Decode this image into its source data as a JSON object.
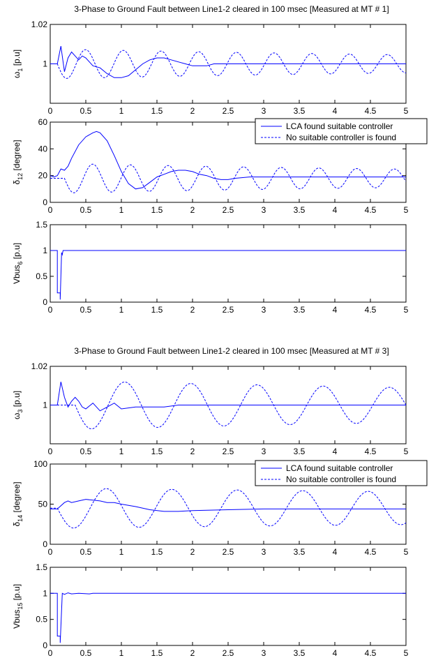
{
  "figure": {
    "legend_solid": "LCA found suitable controller",
    "legend_dashed": "No suitable controller is found"
  },
  "chart_data": [
    {
      "type": "line",
      "title": "3-Phase to Ground Fault between Line1-2 cleared in 100 msec [Measured at MT # 1]",
      "ylabel": "ω1 [p.u]",
      "xlim": [
        0,
        5
      ],
      "ylim": [
        0.98,
        1.02
      ],
      "yticks": [
        1,
        1.02
      ],
      "xticks": [
        0,
        0.5,
        1,
        1.5,
        2,
        2.5,
        3,
        3.5,
        4,
        4.5,
        5
      ],
      "legend": null,
      "series": [
        {
          "name": "LCA found suitable controller",
          "style": "solid",
          "x": [
            0,
            0.1,
            0.15,
            0.2,
            0.25,
            0.3,
            0.35,
            0.4,
            0.45,
            0.5,
            0.55,
            0.6,
            0.7,
            0.8,
            0.9,
            1.0,
            1.1,
            1.2,
            1.3,
            1.4,
            1.5,
            1.6,
            1.7,
            1.8,
            1.9,
            2.0,
            2.1,
            2.2,
            2.3,
            2.4,
            2.5,
            2.6,
            2.7,
            2.8,
            2.9,
            3.0,
            3.5,
            4.0,
            4.5,
            5.0
          ],
          "y": [
            1.0,
            1.0,
            1.009,
            0.996,
            1.003,
            1.006,
            1.004,
            1.002,
            1.004,
            1.003,
            1.001,
            0.999,
            0.998,
            0.995,
            0.993,
            0.993,
            0.994,
            0.997,
            1.0,
            1.002,
            1.003,
            1.003,
            1.002,
            1.001,
            1.0,
            0.999,
            0.999,
            0.999,
            1.0,
            1.0,
            1.0,
            1.0,
            1.0,
            1.0,
            1.0,
            1.0,
            1.0,
            1.0,
            1.0,
            1.0
          ]
        },
        {
          "name": "No suitable controller is found",
          "style": "dashed",
          "amplitude": 0.0075,
          "decay": 0.1,
          "period": 0.53,
          "start": 0.1
        }
      ]
    },
    {
      "type": "line",
      "ylabel": "δ12 [degree]",
      "xlim": [
        0,
        5
      ],
      "ylim": [
        0,
        60
      ],
      "yticks": [
        0,
        20,
        40,
        60
      ],
      "xticks": [
        0,
        0.5,
        1,
        1.5,
        2,
        2.5,
        3,
        3.5,
        4,
        4.5,
        5
      ],
      "legend": "top-right",
      "series": [
        {
          "name": "LCA found suitable controller",
          "style": "solid",
          "x": [
            0,
            0.05,
            0.1,
            0.15,
            0.2,
            0.25,
            0.3,
            0.4,
            0.5,
            0.6,
            0.65,
            0.7,
            0.8,
            0.9,
            1.0,
            1.1,
            1.2,
            1.3,
            1.4,
            1.5,
            1.6,
            1.7,
            1.8,
            1.9,
            2.0,
            2.1,
            2.2,
            2.3,
            2.4,
            2.5,
            2.6,
            2.8,
            3.0,
            3.5,
            4.0,
            4.5,
            5.0
          ],
          "y": [
            20,
            19,
            20,
            25,
            24,
            27,
            33,
            43,
            49,
            52,
            53,
            52,
            46,
            35,
            23,
            14,
            10,
            11,
            15,
            19,
            21,
            23,
            24,
            24,
            23,
            21,
            20,
            18,
            17,
            17,
            18,
            19,
            19,
            19,
            19,
            19,
            19
          ]
        },
        {
          "name": "No suitable controller is found",
          "style": "dashed",
          "base": 18,
          "amplitude": 11,
          "decay": 0.1,
          "period": 0.53,
          "start": 0.2
        }
      ]
    },
    {
      "type": "line",
      "ylabel": "Vbus6 [p.u]",
      "xlim": [
        0,
        5
      ],
      "ylim": [
        0,
        1.5
      ],
      "yticks": [
        0,
        0.5,
        1,
        1.5
      ],
      "xticks": [
        0,
        0.5,
        1,
        1.5,
        2,
        2.5,
        3,
        3.5,
        4,
        4.5,
        5
      ],
      "legend": null,
      "series": [
        {
          "name": "LCA found suitable controller",
          "style": "solid",
          "x": [
            0,
            0.1,
            0.1,
            0.14,
            0.14,
            0.16,
            0.17,
            0.18,
            0.2,
            5.0
          ],
          "y": [
            1,
            1,
            0.18,
            0.18,
            0.05,
            0.96,
            0.92,
            1.0,
            1.0,
            1.0
          ]
        }
      ]
    },
    {
      "type": "line",
      "title": "3-Phase to Ground Fault between Line1-2 cleared in 100 msec [Measured at MT # 3]",
      "ylabel": "ω3 [p.u]",
      "xlim": [
        0,
        5
      ],
      "ylim": [
        0.98,
        1.02
      ],
      "yticks": [
        1,
        1.02
      ],
      "xticks": [
        0,
        0.5,
        1,
        1.5,
        2,
        2.5,
        3,
        3.5,
        4,
        4.5,
        5
      ],
      "legend": null,
      "series": [
        {
          "name": "LCA found suitable controller",
          "style": "solid",
          "x": [
            0,
            0.1,
            0.15,
            0.2,
            0.25,
            0.3,
            0.35,
            0.4,
            0.45,
            0.5,
            0.6,
            0.7,
            0.8,
            0.9,
            1.0,
            1.2,
            1.4,
            1.6,
            1.8,
            2.0,
            2.5,
            3.0,
            3.5,
            4.0,
            4.5,
            5.0
          ],
          "y": [
            1.0,
            1.0,
            1.012,
            1.004,
            0.999,
            1.002,
            1.004,
            1.002,
            0.999,
            0.998,
            1.001,
            0.997,
            0.999,
            1.001,
            0.998,
            0.999,
            0.999,
            0.999,
            1.0,
            1.0,
            1.0,
            1.0,
            1.0,
            1.0,
            1.0,
            1.0
          ]
        },
        {
          "name": "No suitable controller is found",
          "style": "dashed",
          "amplitude": 0.0125,
          "decay": 0.07,
          "period": 0.93,
          "start": 0.35
        }
      ]
    },
    {
      "type": "line",
      "ylabel": "δ14 [degree]",
      "xlim": [
        0,
        5
      ],
      "ylim": [
        0,
        100
      ],
      "yticks": [
        0,
        50,
        100
      ],
      "xticks": [
        0,
        0.5,
        1,
        1.5,
        2,
        2.5,
        3,
        3.5,
        4,
        4.5,
        5
      ],
      "legend": "top-right",
      "series": [
        {
          "name": "LCA found suitable controller",
          "style": "solid",
          "x": [
            0,
            0.1,
            0.2,
            0.25,
            0.3,
            0.4,
            0.5,
            0.6,
            0.7,
            0.8,
            0.9,
            1.0,
            1.2,
            1.4,
            1.6,
            1.8,
            2.0,
            2.5,
            3.0,
            3.5,
            4.0,
            4.5,
            5.0
          ],
          "y": [
            44,
            44,
            52,
            54,
            52,
            54,
            56,
            55,
            54,
            52,
            52,
            50,
            47,
            43,
            41,
            41,
            42,
            43,
            44,
            44,
            44,
            44,
            44
          ]
        },
        {
          "name": "No suitable controller is found",
          "style": "dashed",
          "base": 45,
          "amplitude": 25,
          "decay": 0.04,
          "period": 0.92,
          "start": 0.1
        }
      ]
    },
    {
      "type": "line",
      "ylabel": "Vbus15 [p.u]",
      "xlim": [
        0,
        5
      ],
      "ylim": [
        0,
        1.5
      ],
      "yticks": [
        0,
        0.5,
        1,
        1.5
      ],
      "xticks": [
        0,
        0.5,
        1,
        1.5,
        2,
        2.5,
        3,
        3.5,
        4,
        4.5,
        5
      ],
      "legend": null,
      "series": [
        {
          "name": "LCA found suitable controller",
          "style": "solid",
          "x": [
            0,
            0.1,
            0.1,
            0.14,
            0.14,
            0.17,
            0.2,
            0.25,
            0.3,
            0.4,
            0.55,
            0.6,
            5.0
          ],
          "y": [
            1,
            1,
            0.18,
            0.18,
            0.05,
            1.0,
            0.98,
            1.01,
            0.99,
            1.0,
            0.99,
            1.0,
            1.0
          ]
        }
      ]
    }
  ]
}
